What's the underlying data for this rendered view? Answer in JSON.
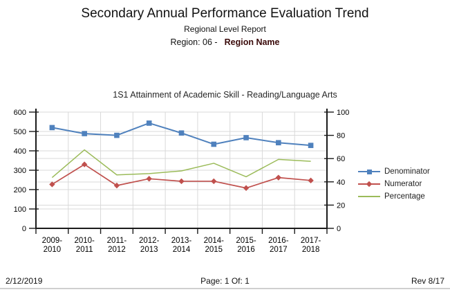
{
  "header": {
    "title": "Secondary Annual Performance Evaluation Trend",
    "subtitle": "Regional Level Report",
    "region_label": "Region: 06 -",
    "region_name": "Region Name",
    "region_name_color": "#3A0A0A"
  },
  "chart_data": {
    "type": "line",
    "title": "1S1 Attainment of Academic Skill - Reading/Language Arts",
    "categories": [
      "2009-2010",
      "2010-2011",
      "2011-2012",
      "2012-2013",
      "2013-2014",
      "2014-2015",
      "2015-2016",
      "2016-2017",
      "2017-2018"
    ],
    "series": [
      {
        "name": "Denominator",
        "axis": "left",
        "color": "#4F81BD",
        "marker": "square",
        "values": [
          520,
          489,
          480,
          543,
          492,
          434,
          468,
          442,
          428
        ]
      },
      {
        "name": "Numerator",
        "axis": "left",
        "color": "#C0504D",
        "marker": "diamond",
        "values": [
          227,
          330,
          221,
          256,
          243,
          243,
          208,
          262,
          247
        ]
      },
      {
        "name": "Percentage",
        "axis": "right",
        "color": "#9BBB59",
        "marker": "none",
        "values": [
          43.7,
          67.5,
          46.0,
          47.1,
          49.4,
          56.0,
          44.4,
          59.3,
          57.7
        ]
      }
    ],
    "left_axis": {
      "min": 0,
      "max": 600,
      "step": 100
    },
    "right_axis": {
      "min": 0,
      "max": 100,
      "step": 20
    },
    "grid": true,
    "legend_position": "right",
    "gridline_color": "#D9D9D9",
    "axis_color": "#1A1A1A"
  },
  "footer": {
    "date": "2/12/2019",
    "page": "Page: 1 Of: 1",
    "rev": "Rev 8/17"
  }
}
